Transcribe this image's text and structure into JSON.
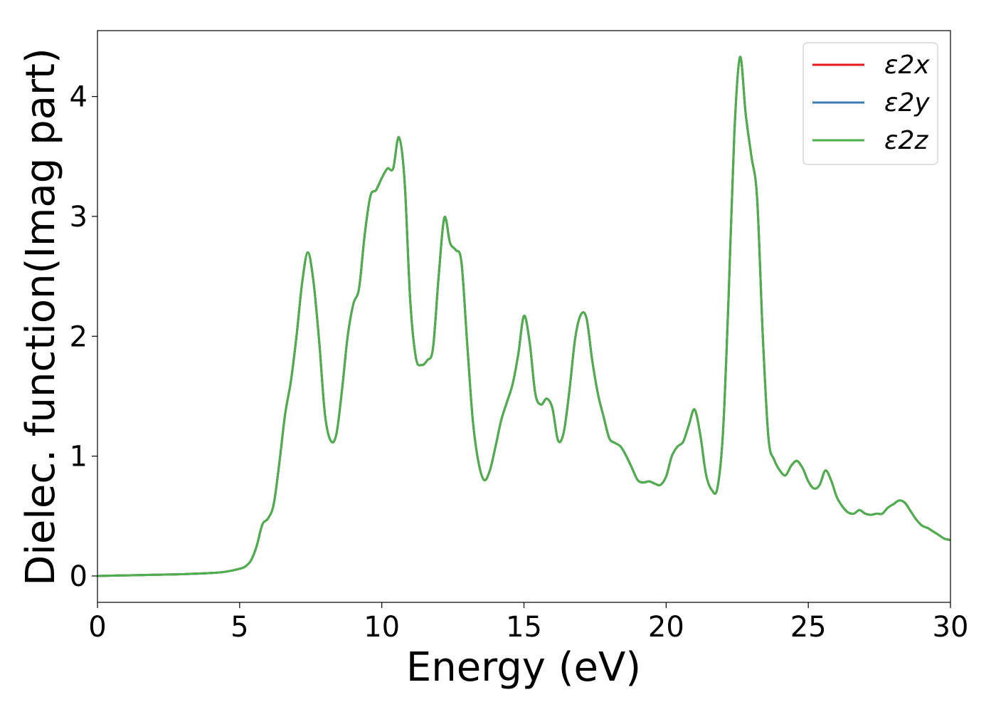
{
  "chart_data": {
    "type": "line",
    "title": "",
    "xlabel": "Energy (eV)",
    "ylabel": "Dielec. function(Imag part)",
    "xlim": [
      0,
      30
    ],
    "ylim": [
      -0.22,
      4.55
    ],
    "x_ticks": [
      "0",
      "5",
      "10",
      "15",
      "20",
      "25",
      "30"
    ],
    "y_ticks": [
      "0",
      "1",
      "2",
      "3",
      "4"
    ],
    "grid": false,
    "legend_position": "top-right",
    "series": [
      {
        "name": "ε2x",
        "color": "#e41a1c",
        "x": [
          0,
          1,
          2,
          3,
          4,
          4.5,
          5,
          5.2,
          5.4,
          5.6,
          5.8,
          6.0,
          6.2,
          6.4,
          6.6,
          6.8,
          7.0,
          7.2,
          7.4,
          7.6,
          7.8,
          8.0,
          8.2,
          8.4,
          8.6,
          8.8,
          9.0,
          9.2,
          9.4,
          9.6,
          9.8,
          10.0,
          10.2,
          10.4,
          10.6,
          10.8,
          11.0,
          11.2,
          11.4,
          11.6,
          11.8,
          12.0,
          12.2,
          12.4,
          12.6,
          12.8,
          13.0,
          13.2,
          13.4,
          13.6,
          13.8,
          14.0,
          14.2,
          14.4,
          14.6,
          14.8,
          15.0,
          15.2,
          15.4,
          15.6,
          15.8,
          16.0,
          16.2,
          16.4,
          16.6,
          16.8,
          17.0,
          17.2,
          17.4,
          17.6,
          17.8,
          18.0,
          18.2,
          18.4,
          18.6,
          18.8,
          19.0,
          19.2,
          19.4,
          19.6,
          19.8,
          20.0,
          20.2,
          20.4,
          20.6,
          20.8,
          21.0,
          21.2,
          21.4,
          21.6,
          21.8,
          22.0,
          22.2,
          22.4,
          22.6,
          22.8,
          23.0,
          23.2,
          23.4,
          23.6,
          23.8,
          24.0,
          24.2,
          24.4,
          24.6,
          24.8,
          25.0,
          25.2,
          25.4,
          25.6,
          25.8,
          26.0,
          26.2,
          26.4,
          26.6,
          26.8,
          27.0,
          27.2,
          27.4,
          27.6,
          27.8,
          28.0,
          28.2,
          28.4,
          28.6,
          28.8,
          29.0,
          29.2,
          29.4,
          29.6,
          29.8,
          30.0
        ],
        "y": [
          0,
          0.005,
          0.01,
          0.015,
          0.025,
          0.035,
          0.06,
          0.08,
          0.13,
          0.25,
          0.43,
          0.48,
          0.6,
          0.95,
          1.35,
          1.62,
          2.0,
          2.45,
          2.7,
          2.45,
          1.95,
          1.35,
          1.13,
          1.18,
          1.55,
          2.0,
          2.27,
          2.4,
          2.85,
          3.17,
          3.22,
          3.32,
          3.4,
          3.4,
          3.66,
          3.3,
          2.3,
          1.82,
          1.76,
          1.8,
          1.9,
          2.5,
          2.99,
          2.78,
          2.72,
          2.62,
          1.95,
          1.3,
          0.95,
          0.8,
          0.88,
          1.08,
          1.3,
          1.45,
          1.6,
          1.85,
          2.17,
          1.95,
          1.52,
          1.43,
          1.48,
          1.4,
          1.13,
          1.2,
          1.55,
          1.98,
          2.18,
          2.15,
          1.8,
          1.52,
          1.33,
          1.15,
          1.11,
          1.08,
          1.0,
          0.9,
          0.8,
          0.78,
          0.79,
          0.77,
          0.76,
          0.83,
          1.0,
          1.08,
          1.12,
          1.26,
          1.39,
          1.18,
          0.85,
          0.72,
          0.73,
          1.2,
          2.35,
          3.7,
          4.33,
          3.85,
          3.5,
          3.15,
          2.0,
          1.15,
          0.97,
          0.88,
          0.84,
          0.92,
          0.96,
          0.9,
          0.79,
          0.73,
          0.76,
          0.88,
          0.8,
          0.66,
          0.58,
          0.53,
          0.52,
          0.55,
          0.52,
          0.51,
          0.52,
          0.52,
          0.57,
          0.6,
          0.63,
          0.61,
          0.54,
          0.47,
          0.42,
          0.4,
          0.37,
          0.34,
          0.31,
          0.3
        ]
      },
      {
        "name": "ε2y",
        "color": "#377eb8",
        "x": [
          0,
          1,
          2,
          3,
          4,
          4.5,
          5,
          5.2,
          5.4,
          5.6,
          5.8,
          6.0,
          6.2,
          6.4,
          6.6,
          6.8,
          7.0,
          7.2,
          7.4,
          7.6,
          7.8,
          8.0,
          8.2,
          8.4,
          8.6,
          8.8,
          9.0,
          9.2,
          9.4,
          9.6,
          9.8,
          10.0,
          10.2,
          10.4,
          10.6,
          10.8,
          11.0,
          11.2,
          11.4,
          11.6,
          11.8,
          12.0,
          12.2,
          12.4,
          12.6,
          12.8,
          13.0,
          13.2,
          13.4,
          13.6,
          13.8,
          14.0,
          14.2,
          14.4,
          14.6,
          14.8,
          15.0,
          15.2,
          15.4,
          15.6,
          15.8,
          16.0,
          16.2,
          16.4,
          16.6,
          16.8,
          17.0,
          17.2,
          17.4,
          17.6,
          17.8,
          18.0,
          18.2,
          18.4,
          18.6,
          18.8,
          19.0,
          19.2,
          19.4,
          19.6,
          19.8,
          20.0,
          20.2,
          20.4,
          20.6,
          20.8,
          21.0,
          21.2,
          21.4,
          21.6,
          21.8,
          22.0,
          22.2,
          22.4,
          22.6,
          22.8,
          23.0,
          23.2,
          23.4,
          23.6,
          23.8,
          24.0,
          24.2,
          24.4,
          24.6,
          24.8,
          25.0,
          25.2,
          25.4,
          25.6,
          25.8,
          26.0,
          26.2,
          26.4,
          26.6,
          26.8,
          27.0,
          27.2,
          27.4,
          27.6,
          27.8,
          28.0,
          28.2,
          28.4,
          28.6,
          28.8,
          29.0,
          29.2,
          29.4,
          29.6,
          29.8,
          30.0
        ],
        "y": [
          0,
          0.005,
          0.01,
          0.015,
          0.025,
          0.035,
          0.06,
          0.08,
          0.13,
          0.25,
          0.43,
          0.48,
          0.6,
          0.95,
          1.35,
          1.62,
          2.0,
          2.45,
          2.7,
          2.45,
          1.95,
          1.35,
          1.13,
          1.18,
          1.55,
          2.0,
          2.27,
          2.4,
          2.85,
          3.17,
          3.22,
          3.32,
          3.4,
          3.4,
          3.66,
          3.3,
          2.3,
          1.82,
          1.76,
          1.8,
          1.9,
          2.5,
          2.99,
          2.78,
          2.72,
          2.62,
          1.95,
          1.3,
          0.95,
          0.8,
          0.88,
          1.08,
          1.3,
          1.45,
          1.6,
          1.85,
          2.17,
          1.95,
          1.52,
          1.43,
          1.48,
          1.4,
          1.13,
          1.2,
          1.55,
          1.98,
          2.18,
          2.15,
          1.8,
          1.52,
          1.33,
          1.15,
          1.11,
          1.08,
          1.0,
          0.9,
          0.8,
          0.78,
          0.79,
          0.77,
          0.76,
          0.83,
          1.0,
          1.08,
          1.12,
          1.26,
          1.39,
          1.18,
          0.85,
          0.72,
          0.73,
          1.2,
          2.35,
          3.7,
          4.33,
          3.85,
          3.5,
          3.15,
          2.0,
          1.15,
          0.97,
          0.88,
          0.84,
          0.92,
          0.96,
          0.9,
          0.79,
          0.73,
          0.76,
          0.88,
          0.8,
          0.66,
          0.58,
          0.53,
          0.52,
          0.55,
          0.52,
          0.51,
          0.52,
          0.52,
          0.57,
          0.6,
          0.63,
          0.61,
          0.54,
          0.47,
          0.42,
          0.4,
          0.37,
          0.34,
          0.31,
          0.3
        ]
      },
      {
        "name": "ε2z",
        "color": "#4daf4a",
        "x": [
          0,
          1,
          2,
          3,
          4,
          4.5,
          5,
          5.2,
          5.4,
          5.6,
          5.8,
          6.0,
          6.2,
          6.4,
          6.6,
          6.8,
          7.0,
          7.2,
          7.4,
          7.6,
          7.8,
          8.0,
          8.2,
          8.4,
          8.6,
          8.8,
          9.0,
          9.2,
          9.4,
          9.6,
          9.8,
          10.0,
          10.2,
          10.4,
          10.6,
          10.8,
          11.0,
          11.2,
          11.4,
          11.6,
          11.8,
          12.0,
          12.2,
          12.4,
          12.6,
          12.8,
          13.0,
          13.2,
          13.4,
          13.6,
          13.8,
          14.0,
          14.2,
          14.4,
          14.6,
          14.8,
          15.0,
          15.2,
          15.4,
          15.6,
          15.8,
          16.0,
          16.2,
          16.4,
          16.6,
          16.8,
          17.0,
          17.2,
          17.4,
          17.6,
          17.8,
          18.0,
          18.2,
          18.4,
          18.6,
          18.8,
          19.0,
          19.2,
          19.4,
          19.6,
          19.8,
          20.0,
          20.2,
          20.4,
          20.6,
          20.8,
          21.0,
          21.2,
          21.4,
          21.6,
          21.8,
          22.0,
          22.2,
          22.4,
          22.6,
          22.8,
          23.0,
          23.2,
          23.4,
          23.6,
          23.8,
          24.0,
          24.2,
          24.4,
          24.6,
          24.8,
          25.0,
          25.2,
          25.4,
          25.6,
          25.8,
          26.0,
          26.2,
          26.4,
          26.6,
          26.8,
          27.0,
          27.2,
          27.4,
          27.6,
          27.8,
          28.0,
          28.2,
          28.4,
          28.6,
          28.8,
          29.0,
          29.2,
          29.4,
          29.6,
          29.8,
          30.0
        ],
        "y": [
          0,
          0.005,
          0.01,
          0.015,
          0.025,
          0.035,
          0.06,
          0.08,
          0.13,
          0.25,
          0.43,
          0.48,
          0.6,
          0.95,
          1.35,
          1.62,
          2.0,
          2.45,
          2.7,
          2.45,
          1.95,
          1.35,
          1.13,
          1.18,
          1.55,
          2.0,
          2.27,
          2.4,
          2.85,
          3.17,
          3.22,
          3.32,
          3.4,
          3.4,
          3.66,
          3.3,
          2.3,
          1.82,
          1.76,
          1.8,
          1.9,
          2.5,
          2.99,
          2.78,
          2.72,
          2.62,
          1.95,
          1.3,
          0.95,
          0.8,
          0.88,
          1.08,
          1.3,
          1.45,
          1.6,
          1.85,
          2.17,
          1.95,
          1.52,
          1.43,
          1.48,
          1.4,
          1.13,
          1.2,
          1.55,
          1.98,
          2.18,
          2.15,
          1.8,
          1.52,
          1.33,
          1.15,
          1.11,
          1.08,
          1.0,
          0.9,
          0.8,
          0.78,
          0.79,
          0.77,
          0.76,
          0.83,
          1.0,
          1.08,
          1.12,
          1.26,
          1.39,
          1.18,
          0.85,
          0.72,
          0.73,
          1.2,
          2.35,
          3.7,
          4.33,
          3.85,
          3.5,
          3.15,
          2.0,
          1.15,
          0.97,
          0.88,
          0.84,
          0.92,
          0.96,
          0.9,
          0.79,
          0.73,
          0.76,
          0.88,
          0.8,
          0.66,
          0.58,
          0.53,
          0.52,
          0.55,
          0.52,
          0.51,
          0.52,
          0.52,
          0.57,
          0.6,
          0.63,
          0.61,
          0.54,
          0.47,
          0.42,
          0.4,
          0.37,
          0.34,
          0.31,
          0.3
        ]
      }
    ]
  }
}
